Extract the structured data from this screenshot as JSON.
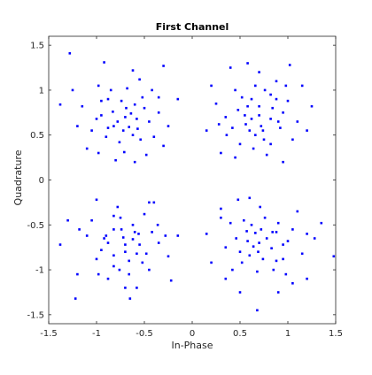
{
  "chart_data": {
    "type": "scatter",
    "title": "First Channel",
    "xlabel": "In-Phase",
    "ylabel": "Quadrature",
    "xlim": [
      -1.5,
      1.5
    ],
    "ylim": [
      -1.6,
      1.6
    ],
    "xticks": [
      -1.5,
      -1,
      -0.5,
      0,
      0.5,
      1,
      1.5
    ],
    "xtick_labels": [
      "-1.5",
      "-1",
      "-0.5",
      "0",
      "0.5",
      "1",
      "1.5"
    ],
    "yticks": [
      -1.5,
      -1,
      -0.5,
      0,
      0.5,
      1,
      1.5
    ],
    "ytick_labels": [
      "-1.5",
      "-1",
      "-0.5",
      "0",
      "0.5",
      "1",
      "1.5"
    ],
    "grid": false,
    "marker_color": "#0000ff",
    "cluster_centers": [
      [
        -0.707,
        0.707
      ],
      [
        0.707,
        0.707
      ],
      [
        -0.707,
        -0.707
      ],
      [
        0.707,
        -0.707
      ]
    ],
    "points": [
      [
        -0.7,
        0.7
      ],
      [
        -0.82,
        0.6
      ],
      [
        -0.6,
        0.84
      ],
      [
        -0.95,
        0.72
      ],
      [
        -0.45,
        0.65
      ],
      [
        -0.68,
        1.02
      ],
      [
        -0.76,
        0.42
      ],
      [
        -1.05,
        0.55
      ],
      [
        -0.52,
        0.92
      ],
      [
        -0.88,
        0.9
      ],
      [
        -0.35,
        0.75
      ],
      [
        -0.62,
        0.5
      ],
      [
        -1.15,
        0.82
      ],
      [
        -0.71,
        0.31
      ],
      [
        -0.4,
        0.48
      ],
      [
        -0.98,
        1.05
      ],
      [
        -0.58,
        0.68
      ],
      [
        -0.83,
        0.76
      ],
      [
        -0.66,
        0.59
      ],
      [
        -0.74,
        0.88
      ],
      [
        -1.28,
        1.41
      ],
      [
        -0.3,
        1.27
      ],
      [
        -1.38,
        0.84
      ],
      [
        -0.92,
        1.31
      ],
      [
        -0.55,
        1.12
      ],
      [
        -0.8,
        0.22
      ],
      [
        -0.25,
        0.6
      ],
      [
        -1.1,
        0.35
      ],
      [
        -0.48,
        0.28
      ],
      [
        -0.62,
        1.22
      ],
      [
        -0.78,
        0.65
      ],
      [
        -0.69,
        0.8
      ],
      [
        -0.9,
        0.48
      ],
      [
        -0.5,
        0.8
      ],
      [
        -1.0,
        0.68
      ],
      [
        -0.57,
        0.57
      ],
      [
        -0.85,
        1.0
      ],
      [
        -0.72,
        0.55
      ],
      [
        -0.64,
        0.74
      ],
      [
        -0.95,
        0.88
      ],
      [
        -1.2,
        0.6
      ],
      [
        -0.42,
        1.0
      ],
      [
        -0.3,
        0.38
      ],
      [
        -0.15,
        0.9
      ],
      [
        -1.25,
        1.0
      ],
      [
        -0.6,
        0.2
      ],
      [
        -0.98,
        0.3
      ],
      [
        -0.35,
        0.92
      ],
      [
        -0.88,
        0.58
      ],
      [
        -0.54,
        0.45
      ],
      [
        0.7,
        0.72
      ],
      [
        0.56,
        0.62
      ],
      [
        0.84,
        0.8
      ],
      [
        0.62,
        0.9
      ],
      [
        0.92,
        0.58
      ],
      [
        0.48,
        0.78
      ],
      [
        0.75,
        0.45
      ],
      [
        1.0,
        0.88
      ],
      [
        0.35,
        0.7
      ],
      [
        0.66,
        1.05
      ],
      [
        0.88,
        1.1
      ],
      [
        0.5,
        0.4
      ],
      [
        1.1,
        0.65
      ],
      [
        0.25,
        0.85
      ],
      [
        0.78,
        0.28
      ],
      [
        0.6,
        0.55
      ],
      [
        0.72,
        0.6
      ],
      [
        0.95,
        0.75
      ],
      [
        0.45,
        1.0
      ],
      [
        0.82,
        0.95
      ],
      [
        0.4,
        1.25
      ],
      [
        0.58,
        1.3
      ],
      [
        1.02,
        1.28
      ],
      [
        0.15,
        0.55
      ],
      [
        1.25,
        0.82
      ],
      [
        0.3,
        0.3
      ],
      [
        0.95,
        0.2
      ],
      [
        0.2,
        1.05
      ],
      [
        1.15,
        1.05
      ],
      [
        0.64,
        0.35
      ],
      [
        0.7,
        0.82
      ],
      [
        0.55,
        0.72
      ],
      [
        0.82,
        0.68
      ],
      [
        0.66,
        0.5
      ],
      [
        0.88,
        0.9
      ],
      [
        0.42,
        0.58
      ],
      [
        0.76,
        1.0
      ],
      [
        1.05,
        0.45
      ],
      [
        0.52,
        0.92
      ],
      [
        0.62,
        0.68
      ],
      [
        0.36,
        0.5
      ],
      [
        0.98,
        1.05
      ],
      [
        0.28,
        0.62
      ],
      [
        0.82,
        0.4
      ],
      [
        1.2,
        0.55
      ],
      [
        0.45,
        0.25
      ],
      [
        0.7,
        1.2
      ],
      [
        0.9,
        0.65
      ],
      [
        0.58,
        0.82
      ],
      [
        0.74,
        0.55
      ],
      [
        -0.7,
        -0.72
      ],
      [
        -0.56,
        -0.6
      ],
      [
        -0.82,
        -0.84
      ],
      [
        -0.62,
        -0.5
      ],
      [
        -0.92,
        -0.65
      ],
      [
        -0.48,
        -0.82
      ],
      [
        -0.75,
        -0.42
      ],
      [
        -1.0,
        -0.88
      ],
      [
        -0.35,
        -0.7
      ],
      [
        -0.66,
        -1.05
      ],
      [
        -0.88,
        -1.1
      ],
      [
        -0.5,
        -0.38
      ],
      [
        -1.1,
        -0.62
      ],
      [
        -0.25,
        -0.85
      ],
      [
        -0.78,
        -0.3
      ],
      [
        -0.6,
        -0.58
      ],
      [
        -0.72,
        -0.64
      ],
      [
        -0.95,
        -0.78
      ],
      [
        -0.45,
        -1.0
      ],
      [
        -0.82,
        -0.96
      ],
      [
        -1.22,
        -1.32
      ],
      [
        -0.65,
        -1.32
      ],
      [
        -1.38,
        -0.72
      ],
      [
        -1.0,
        -0.22
      ],
      [
        -0.22,
        -1.12
      ],
      [
        -0.4,
        -0.25
      ],
      [
        -1.2,
        -1.05
      ],
      [
        -0.15,
        -0.62
      ],
      [
        -1.3,
        -0.45
      ],
      [
        -0.58,
        -1.2
      ],
      [
        -0.7,
        -0.8
      ],
      [
        -0.55,
        -0.72
      ],
      [
        -0.82,
        -0.55
      ],
      [
        -0.66,
        -0.9
      ],
      [
        -0.88,
        -0.7
      ],
      [
        -0.42,
        -0.58
      ],
      [
        -0.76,
        -1.0
      ],
      [
        -1.05,
        -0.45
      ],
      [
        -0.52,
        -0.92
      ],
      [
        -0.62,
        -0.66
      ],
      [
        -0.36,
        -0.5
      ],
      [
        -0.98,
        -1.05
      ],
      [
        -0.28,
        -0.62
      ],
      [
        -0.82,
        -0.4
      ],
      [
        -1.18,
        -0.55
      ],
      [
        -0.45,
        -0.25
      ],
      [
        -0.7,
        -1.2
      ],
      [
        -0.9,
        -0.62
      ],
      [
        -0.58,
        -0.82
      ],
      [
        -0.74,
        -0.55
      ],
      [
        0.7,
        -0.7
      ],
      [
        0.84,
        -0.58
      ],
      [
        0.6,
        -0.84
      ],
      [
        0.95,
        -0.72
      ],
      [
        0.46,
        -0.65
      ],
      [
        0.68,
        -1.02
      ],
      [
        0.76,
        -0.42
      ],
      [
        1.05,
        -0.55
      ],
      [
        0.52,
        -0.92
      ],
      [
        0.88,
        -0.9
      ],
      [
        0.35,
        -0.75
      ],
      [
        0.62,
        -0.5
      ],
      [
        1.15,
        -0.82
      ],
      [
        0.71,
        -0.3
      ],
      [
        0.4,
        -0.48
      ],
      [
        0.98,
        -1.05
      ],
      [
        0.58,
        -0.68
      ],
      [
        0.83,
        -0.76
      ],
      [
        0.66,
        -0.59
      ],
      [
        0.74,
        -0.88
      ],
      [
        0.68,
        -1.45
      ],
      [
        0.5,
        -1.25
      ],
      [
        1.48,
        -0.85
      ],
      [
        1.35,
        -0.48
      ],
      [
        0.2,
        -0.92
      ],
      [
        0.3,
        -0.42
      ],
      [
        1.2,
        -1.1
      ],
      [
        0.48,
        -0.22
      ],
      [
        1.28,
        -0.65
      ],
      [
        0.9,
        -1.25
      ],
      [
        0.78,
        -0.65
      ],
      [
        0.69,
        -0.8
      ],
      [
        0.9,
        -0.48
      ],
      [
        0.5,
        -0.8
      ],
      [
        1.0,
        -0.68
      ],
      [
        0.57,
        -0.57
      ],
      [
        0.85,
        -1.0
      ],
      [
        0.72,
        -0.55
      ],
      [
        0.64,
        -0.74
      ],
      [
        0.95,
        -0.88
      ],
      [
        1.2,
        -0.6
      ],
      [
        0.42,
        -1.0
      ],
      [
        0.3,
        -0.32
      ],
      [
        0.15,
        -0.6
      ],
      [
        1.1,
        -0.35
      ],
      [
        0.6,
        -0.2
      ],
      [
        0.35,
        -1.1
      ],
      [
        0.88,
        -0.58
      ],
      [
        0.54,
        -0.45
      ],
      [
        1.05,
        -1.15
      ]
    ]
  }
}
